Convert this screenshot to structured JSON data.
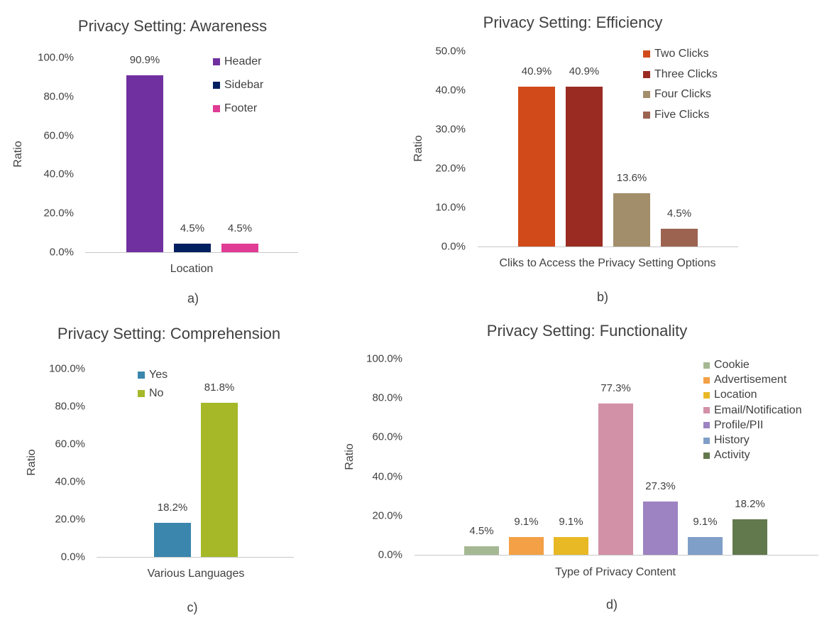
{
  "chart_data": [
    {
      "type": "bar",
      "title": "Privacy Setting: Awareness",
      "xlabel": "Location",
      "ylabel": "Ratio",
      "caption": "a)",
      "ylim": [
        0,
        100
      ],
      "yticks": [
        "0.0%",
        "20.0%",
        "40.0%",
        "60.0%",
        "80.0%",
        "100.0%"
      ],
      "legend_position": "top-right",
      "series": [
        {
          "name": "Header",
          "value": 90.9,
          "label": "90.9%",
          "color": "#7030a0"
        },
        {
          "name": "Sidebar",
          "value": 4.5,
          "label": "4.5%",
          "color": "#002060"
        },
        {
          "name": "Footer",
          "value": 4.5,
          "label": "4.5%",
          "color": "#e03c96"
        }
      ]
    },
    {
      "type": "bar",
      "title": "Privacy Setting: Efficiency",
      "xlabel": "Cliks to Access the Privacy Setting Options",
      "ylabel": "Ratio",
      "caption": "b)",
      "ylim": [
        0,
        50
      ],
      "yticks": [
        "0.0%",
        "10.0%",
        "20.0%",
        "30.0%",
        "40.0%",
        "50.0%"
      ],
      "legend_position": "top-right",
      "series": [
        {
          "name": "Two Clicks",
          "value": 40.9,
          "label": "40.9%",
          "color": "#d14a19"
        },
        {
          "name": "Three Clicks",
          "value": 40.9,
          "label": "40.9%",
          "color": "#9a2b22"
        },
        {
          "name": "Four Clicks",
          "value": 13.6,
          "label": "13.6%",
          "color": "#a38e6b"
        },
        {
          "name": "Five Clicks",
          "value": 4.5,
          "label": "4.5%",
          "color": "#9c6351"
        }
      ]
    },
    {
      "type": "bar",
      "title": "Privacy Setting: Comprehension",
      "xlabel": "Various Languages",
      "ylabel": "Ratio",
      "caption": "c)",
      "ylim": [
        0,
        100
      ],
      "yticks": [
        "0.0%",
        "20.0%",
        "40.0%",
        "60.0%",
        "80.0%",
        "100.0%"
      ],
      "legend_position": "top-center",
      "series": [
        {
          "name": "Yes",
          "value": 18.2,
          "label": "18.2%",
          "color": "#3a86ad"
        },
        {
          "name": "No",
          "value": 81.8,
          "label": "81.8%",
          "color": "#a6b828"
        }
      ]
    },
    {
      "type": "bar",
      "title": "Privacy Setting: Functionality",
      "xlabel": "Type of Privacy  Content",
      "ylabel": "Ratio",
      "caption": "d)",
      "ylim": [
        0,
        100
      ],
      "yticks": [
        "0.0%",
        "20.0%",
        "40.0%",
        "60.0%",
        "80.0%",
        "100.0%"
      ],
      "legend_position": "top-right",
      "series": [
        {
          "name": "Cookie",
          "value": 4.5,
          "label": "4.5%",
          "color": "#a5b894"
        },
        {
          "name": "Advertisement",
          "value": 9.1,
          "label": "9.1%",
          "color": "#f3a046"
        },
        {
          "name": "Location",
          "value": 9.1,
          "label": "9.1%",
          "color": "#e8b825"
        },
        {
          "name": "Email/Notification",
          "value": 77.3,
          "label": "77.3%",
          "color": "#d291a6"
        },
        {
          "name": "Profile/PII",
          "value": 27.3,
          "label": "27.3%",
          "color": "#9d83c2"
        },
        {
          "name": "History",
          "value": 9.1,
          "label": "9.1%",
          "color": "#7f9fc8"
        },
        {
          "name": "Activity",
          "value": 18.2,
          "label": "18.2%",
          "color": "#62784d"
        }
      ]
    }
  ]
}
